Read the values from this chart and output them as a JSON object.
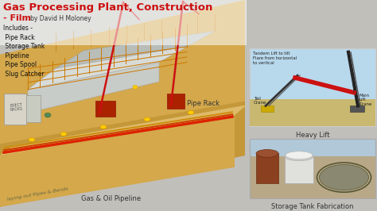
{
  "bg_color": "#c0bfba",
  "title_text": "Gas Processing Plant, Construction",
  "subtitle_text": "- Film",
  "author_text": "by David H Moloney",
  "title_color": "#cc1111",
  "subtitle_color": "#cc1111",
  "author_color": "#333333",
  "includes_label": "Includes -\n Pipe Rack\n Storage Tank\n Pipeline\n Pipe Spool\n Slug Catcher",
  "includes_color": "#111111",
  "sand_color": "#d4a84b",
  "sand_dark": "#c49838",
  "pipe_rack_label": "Pipe Rack",
  "gas_pipeline_label": "Gas & Oil Pipeline",
  "heavy_lift_label": "Heavy Lift",
  "storage_label": "Storage Tank Fabrication",
  "heavy_lift_bg": "#b8d8ec",
  "heavy_lift_ground": "#c8b870",
  "storage_bg": "#9aab98",
  "font_size_title": 9.5,
  "font_size_subtitle": 8,
  "font_size_body": 5.5,
  "font_size_label": 6
}
